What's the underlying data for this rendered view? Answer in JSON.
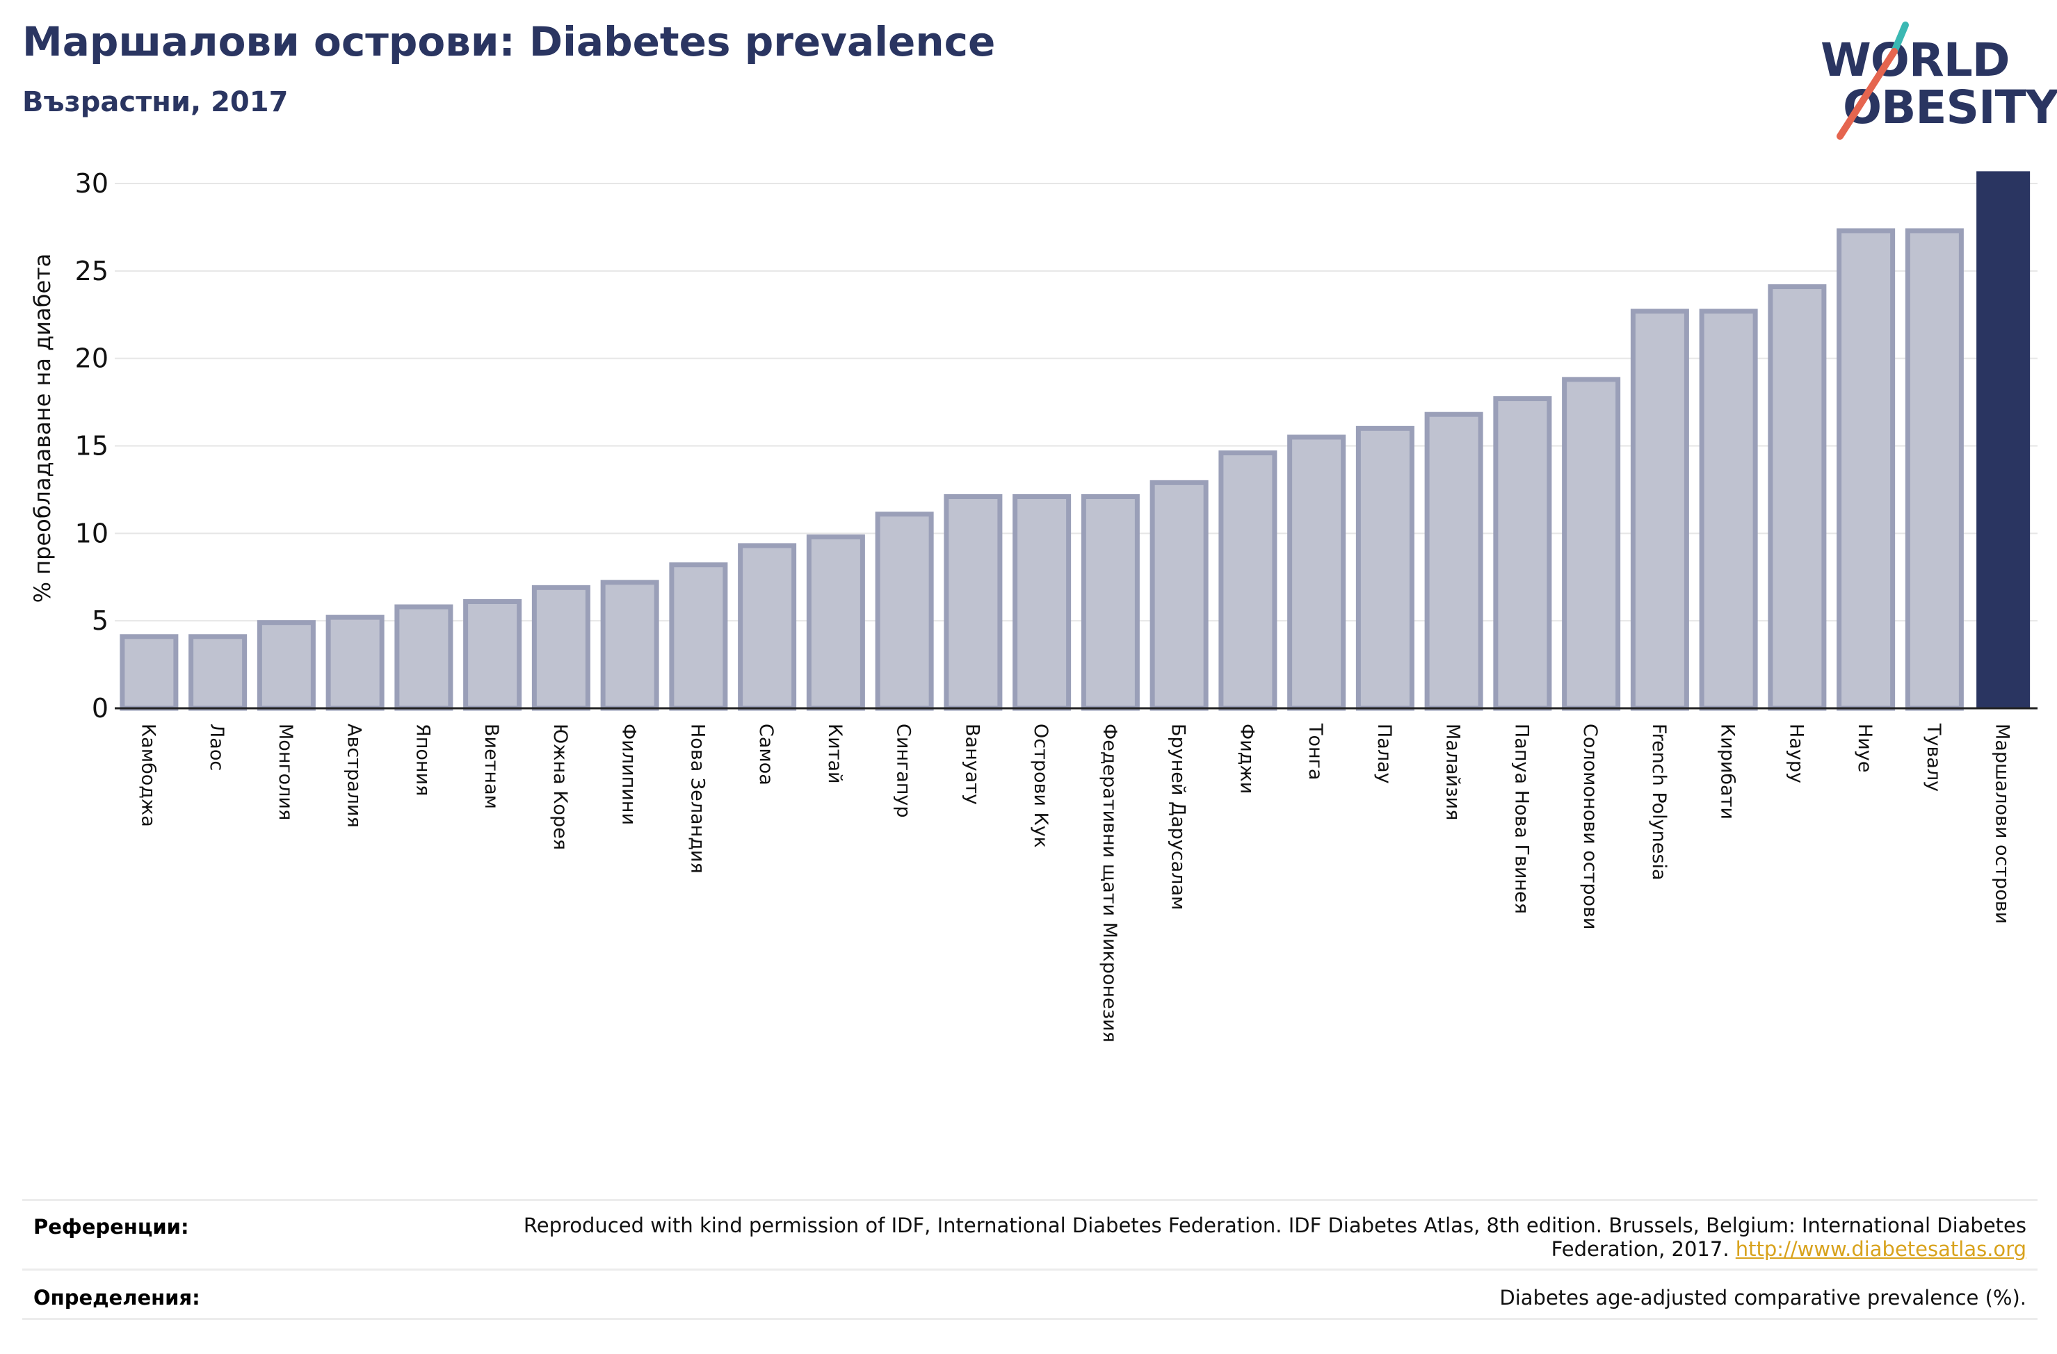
{
  "title": "Маршалови острови: Diabetes prevalence",
  "subtitle": "Възрастни, 2017",
  "logo": {
    "line1": "WORLD",
    "line2": "OBESITY"
  },
  "colors": {
    "highlight": "#2a3561",
    "bar_fill": "#bfc2d0",
    "bar_stroke": "#9a9fb8",
    "grid": "#e6e6e6",
    "logo_teal": "#3bb8b3",
    "logo_red": "#e5654f",
    "link": "#d8a21c"
  },
  "chart_data": {
    "type": "bar",
    "ylabel": "% преобладаване на диабета",
    "xlabel": "",
    "ylim": [
      0,
      30
    ],
    "yticks": [
      0,
      5,
      10,
      15,
      20,
      25,
      30
    ],
    "grid": true,
    "highlight_category": "Маршалови острови",
    "categories": [
      "Камбоджа",
      "Лаос",
      "Монголия",
      "Австралия",
      "Япония",
      "Виетнам",
      "Южна Корея",
      "Филипини",
      "Нова Зеландия",
      "Самоа",
      "Китай",
      "Сингапур",
      "Вануату",
      "Острови Кук",
      "Федеративни щати Микронезия",
      "Бруней Дарусалам",
      "Фиджи",
      "Тонга",
      "Палау",
      "Малайзия",
      "Папуа Нова Гвинея",
      "Соломонови острови",
      "French Polynesia",
      "Кирибати",
      "Науру",
      "Ниуе",
      "Тувалу",
      "Маршалови острови"
    ],
    "values": [
      4.1,
      4.1,
      4.9,
      5.2,
      5.8,
      6.1,
      6.9,
      7.2,
      8.2,
      9.3,
      9.8,
      11.1,
      12.1,
      12.1,
      12.1,
      12.9,
      14.6,
      15.5,
      16.0,
      16.8,
      17.7,
      18.8,
      22.7,
      22.7,
      24.1,
      27.3,
      27.3,
      30.7
    ]
  },
  "footer": {
    "references_label": "Референции:",
    "references_text": "Reproduced with kind permission of IDF, International Diabetes Federation. IDF Diabetes Atlas, 8th edition. Brussels, Belgium: International Diabetes Federation, 2017.",
    "references_link": "http://www.diabetesatlas.org",
    "definitions_label": "Определения:",
    "definitions_text": "Diabetes age-adjusted comparative prevalence (%)."
  }
}
